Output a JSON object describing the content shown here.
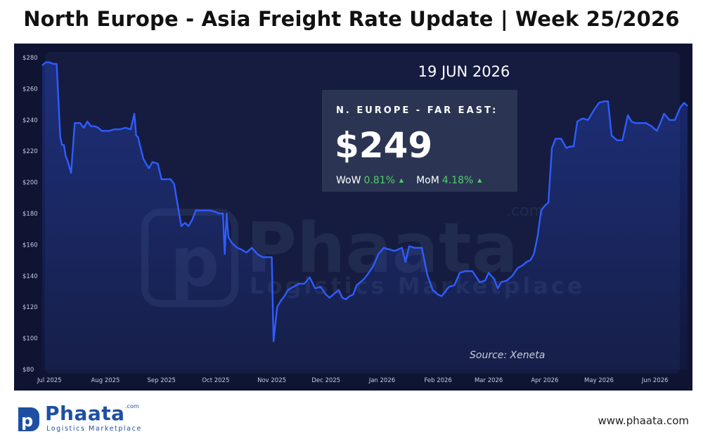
{
  "title": "North Europe - Asia Freight Rate Update | Week 25/2026",
  "date_label": "19 JUN 2026",
  "rate_box": {
    "route": "N. EUROPE - FAR EAST:",
    "price": "$249",
    "wow_label": "WoW",
    "wow_value": "0.81%",
    "mom_label": "MoM",
    "mom_value": "4.18%"
  },
  "source": "Source: Xeneta",
  "website": "www.phaata.com",
  "logo": {
    "brand": "Phaata",
    "com": ".com",
    "tagline": "Logistics Marketplace"
  },
  "watermark": {
    "brand": "Phaata",
    "com": ".com",
    "tagline": "Logistics Marketplace"
  },
  "colors": {
    "background": "#0f1433",
    "plot": "#151c40",
    "line": "#2f5cff",
    "positive": "#4fd06a",
    "brand": "#1e4fa3"
  },
  "chart_data": {
    "type": "area",
    "title": "",
    "xlabel": "",
    "ylabel": "",
    "ylim": [
      80,
      280
    ],
    "ytick_labels": [
      "$80",
      "$100",
      "$120",
      "$140",
      "$160",
      "$180",
      "$200",
      "$220",
      "$240",
      "$260",
      "$280"
    ],
    "xtick_labels": [
      "Jul 2025",
      "Aug 2025",
      "Sep 2025",
      "Oct 2025",
      "Nov 2025",
      "Dec 2025",
      "Jan 2026",
      "Feb 2026",
      "Mar 2026",
      "Apr 2026",
      "May 2026",
      "Jun 2026"
    ],
    "xtick_dates": [
      "2025-07-01",
      "2025-08-01",
      "2025-09-01",
      "2025-10-01",
      "2025-11-01",
      "2025-12-01",
      "2026-01-01",
      "2026-02-01",
      "2026-03-01",
      "2026-04-01",
      "2026-05-01",
      "2026-06-01"
    ],
    "grid": false,
    "series": [
      {
        "x": [
          "2025-06-27",
          "2025-06-29",
          "2025-07-01",
          "2025-07-03",
          "2025-07-05",
          "2025-07-07",
          "2025-07-08",
          "2025-07-09",
          "2025-07-10",
          "2025-07-11",
          "2025-07-13",
          "2025-07-15",
          "2025-07-17",
          "2025-07-18",
          "2025-07-20",
          "2025-07-22",
          "2025-07-24",
          "2025-07-26",
          "2025-07-28",
          "2025-07-30",
          "2025-08-01",
          "2025-08-03",
          "2025-08-06",
          "2025-08-09",
          "2025-08-12",
          "2025-08-15",
          "2025-08-17",
          "2025-08-18",
          "2025-08-19",
          "2025-08-22",
          "2025-08-25",
          "2025-08-27",
          "2025-08-30",
          "2025-09-01",
          "2025-09-03",
          "2025-09-06",
          "2025-09-08",
          "2025-09-10",
          "2025-09-12",
          "2025-09-14",
          "2025-09-16",
          "2025-09-18",
          "2025-09-20",
          "2025-09-22",
          "2025-09-25",
          "2025-09-28",
          "2025-10-01",
          "2025-10-03",
          "2025-10-05",
          "2025-10-06",
          "2025-10-07",
          "2025-10-08",
          "2025-10-10",
          "2025-10-13",
          "2025-10-15",
          "2025-10-18",
          "2025-10-21",
          "2025-10-24",
          "2025-10-27",
          "2025-10-30",
          "2025-11-01",
          "2025-11-02",
          "2025-11-04",
          "2025-11-06",
          "2025-11-08",
          "2025-11-10",
          "2025-11-13",
          "2025-11-16",
          "2025-11-19",
          "2025-11-22",
          "2025-11-25",
          "2025-11-28",
          "2025-12-01",
          "2025-12-03",
          "2025-12-05",
          "2025-12-08",
          "2025-12-10",
          "2025-12-12",
          "2025-12-14",
          "2025-12-16",
          "2025-12-18",
          "2025-12-20",
          "2025-12-22",
          "2025-12-24",
          "2025-12-27",
          "2025-12-30",
          "2026-01-02",
          "2026-01-05",
          "2026-01-08",
          "2026-01-10",
          "2026-01-12",
          "2026-01-14",
          "2026-01-16",
          "2026-01-19",
          "2026-01-21",
          "2026-01-23",
          "2026-01-26",
          "2026-01-29",
          "2026-02-01",
          "2026-02-03",
          "2026-02-05",
          "2026-02-07",
          "2026-02-10",
          "2026-02-13",
          "2026-02-16",
          "2026-02-20",
          "2026-02-24",
          "2026-02-27",
          "2026-03-01",
          "2026-03-04",
          "2026-03-06",
          "2026-03-08",
          "2026-03-11",
          "2026-03-14",
          "2026-03-17",
          "2026-03-20",
          "2026-03-22",
          "2026-03-24",
          "2026-03-26",
          "2026-03-28",
          "2026-03-30",
          "2026-04-01",
          "2026-04-03",
          "2026-04-05",
          "2026-04-07",
          "2026-04-10",
          "2026-04-13",
          "2026-04-15",
          "2026-04-17",
          "2026-04-19",
          "2026-04-22",
          "2026-04-25",
          "2026-04-28",
          "2026-05-01",
          "2026-05-04",
          "2026-05-06",
          "2026-05-08",
          "2026-05-11",
          "2026-05-14",
          "2026-05-17",
          "2026-05-19",
          "2026-05-21",
          "2026-05-24",
          "2026-05-27",
          "2026-05-30",
          "2026-06-02",
          "2026-06-04",
          "2026-06-06",
          "2026-06-09",
          "2026-06-12",
          "2026-06-15",
          "2026-06-17",
          "2026-06-19"
        ],
        "y": [
          275,
          277,
          277,
          276,
          276,
          229,
          224,
          224,
          217,
          214,
          206,
          238,
          238,
          238,
          235,
          239,
          236,
          236,
          235,
          233,
          233,
          233,
          234,
          234,
          235,
          234,
          244,
          230,
          229,
          215,
          209,
          213,
          212,
          202,
          202,
          202,
          199,
          185,
          172,
          174,
          172,
          176,
          182,
          182,
          182,
          182,
          181,
          180,
          180,
          154,
          180,
          165,
          161,
          158,
          157,
          155,
          158,
          154,
          152,
          152,
          152,
          98,
          120,
          124,
          127,
          131,
          133,
          135,
          135,
          139,
          132,
          133,
          128,
          126,
          128,
          131,
          126,
          125,
          127,
          128,
          134,
          136,
          138,
          141,
          146,
          154,
          158,
          157,
          156,
          157,
          158,
          149,
          159,
          158,
          158,
          158,
          141,
          131,
          128,
          127,
          130,
          133,
          134,
          142,
          143,
          143,
          136,
          137,
          142,
          138,
          132,
          136,
          137,
          140,
          145,
          147,
          149,
          150,
          154,
          165,
          182,
          185,
          187,
          222,
          228,
          228,
          222,
          223,
          223,
          239,
          241,
          240,
          246,
          251,
          252,
          252,
          230,
          227,
          227,
          243,
          239,
          238,
          238,
          238,
          236,
          233,
          238,
          244,
          240,
          240,
          248,
          251,
          249
        ]
      }
    ]
  }
}
